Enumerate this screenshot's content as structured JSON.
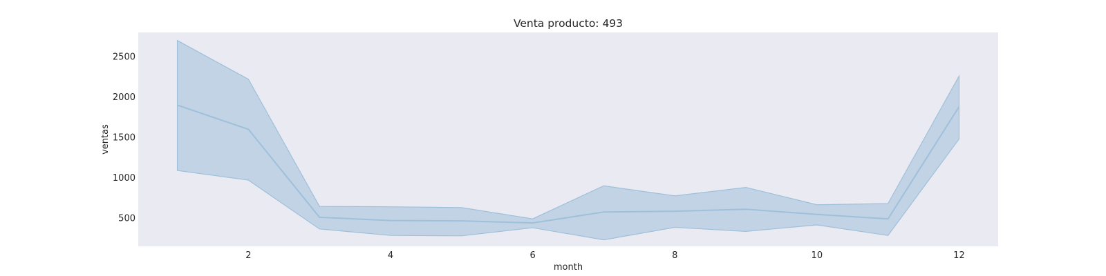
{
  "chart_data": {
    "type": "line",
    "title": "Venta producto: 493",
    "xlabel": "month",
    "ylabel": "ventas",
    "xlim": [
      0.45,
      12.55
    ],
    "ylim": [
      150,
      2800
    ],
    "xticks": [
      2,
      4,
      6,
      8,
      10,
      12
    ],
    "yticks": [
      500,
      1000,
      1500,
      2000,
      2500
    ],
    "grid": false,
    "legend": "none",
    "colors": {
      "plot_background": "#eaeaf2",
      "line": "#9fc0da",
      "band": "#9fc0da"
    },
    "series": [
      {
        "x": [
          1,
          2,
          3,
          4,
          5,
          6,
          7,
          8,
          9,
          10,
          11,
          12
        ],
        "y": [
          1900,
          1600,
          510,
          470,
          465,
          440,
          575,
          585,
          610,
          545,
          490,
          1880
        ],
        "ci_lower": [
          1090,
          970,
          365,
          285,
          280,
          380,
          230,
          385,
          335,
          415,
          285,
          1480
        ],
        "ci_upper": [
          2700,
          2220,
          645,
          640,
          630,
          490,
          900,
          775,
          880,
          665,
          680,
          2260
        ]
      }
    ]
  }
}
